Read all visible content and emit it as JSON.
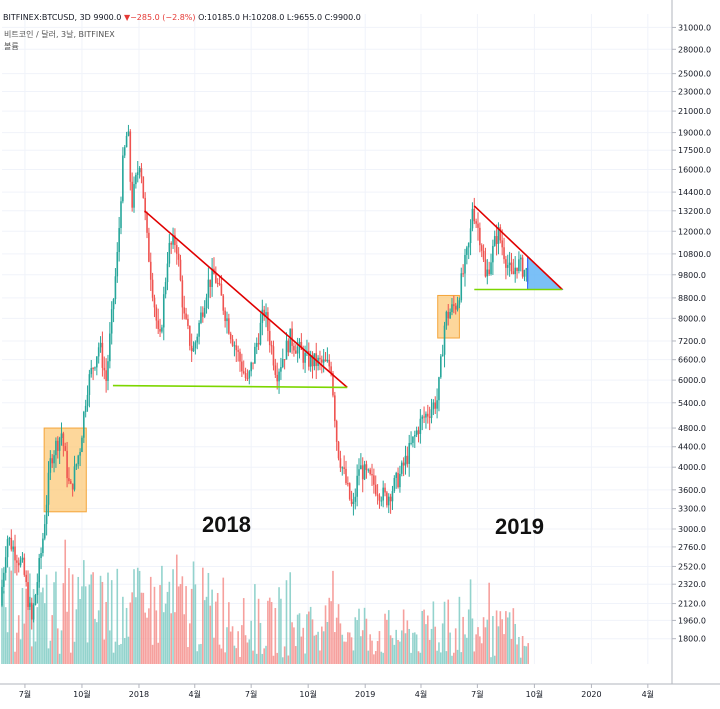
{
  "header": {
    "symbol": "BITFINEX:BTCUSD, 3D",
    "last": "9900.0",
    "change": "−285.0 (−2.8%)",
    "open": "O:10185.0",
    "high": "H:10208.0",
    "low": "L:9655.0",
    "close": "C:9900.0",
    "change_icon": "triangle-down-icon"
  },
  "legend": {
    "line1": "비트코인 / 달러, 3날, BITFINEX",
    "line2": "볼륨"
  },
  "annotations": {
    "year_2018": "2018",
    "year_2019": "2019"
  },
  "colors": {
    "up": "#26a69a",
    "down": "#ef5350",
    "volume_up": "#80cbc4",
    "volume_down": "#f48f8c",
    "resistance": "#e00000",
    "support": "#7cd600",
    "box_fill": "#fcc97a",
    "triangle_fill": "#64b5f6"
  },
  "chart_data": {
    "type": "candlestick",
    "y_scale": "log",
    "ylim": [
      1600,
      31500
    ],
    "y_ticks": [
      {
        "value": 31000,
        "label": "31000.0"
      },
      {
        "value": 28000,
        "label": "28000.0"
      },
      {
        "value": 25000,
        "label": "25000.0"
      },
      {
        "value": 23000,
        "label": "23000.0"
      },
      {
        "value": 21000,
        "label": "21000.0"
      },
      {
        "value": 19000,
        "label": "19000.0"
      },
      {
        "value": 17500,
        "label": "17500.0"
      },
      {
        "value": 16000,
        "label": "16000.0"
      },
      {
        "value": 14400,
        "label": "14400.0"
      },
      {
        "value": 13200,
        "label": "13200.0"
      },
      {
        "value": 12000,
        "label": "12000.0"
      },
      {
        "value": 10800,
        "label": "10800.0"
      },
      {
        "value": 9800,
        "label": "9800.0"
      },
      {
        "value": 8800,
        "label": "8800.0"
      },
      {
        "value": 8000,
        "label": "8000.0"
      },
      {
        "value": 7200,
        "label": "7200.0"
      },
      {
        "value": 6600,
        "label": "6600.0"
      },
      {
        "value": 6000,
        "label": "6000.0"
      },
      {
        "value": 5400,
        "label": "5400.0"
      },
      {
        "value": 4800,
        "label": "4800.0"
      },
      {
        "value": 4400,
        "label": "4400.0"
      },
      {
        "value": 4000,
        "label": "4000.0"
      },
      {
        "value": 3600,
        "label": "3600.0"
      },
      {
        "value": 3300,
        "label": "3300.0"
      },
      {
        "value": 3000,
        "label": "3000.0"
      },
      {
        "value": 2760,
        "label": "2760.0"
      },
      {
        "value": 2520,
        "label": "2520.0"
      },
      {
        "value": 2320,
        "label": "2320.0"
      },
      {
        "value": 2120,
        "label": "2120.0"
      },
      {
        "value": 1960,
        "label": "1960.0"
      },
      {
        "value": 1800,
        "label": "1800.0"
      }
    ],
    "xlim": [
      "2017-05-25",
      "2020-05-10"
    ],
    "x_ticks": [
      {
        "date": "2017-07-01",
        "label": "7월"
      },
      {
        "date": "2017-10-01",
        "label": "10월"
      },
      {
        "date": "2018-01-01",
        "label": "2018"
      },
      {
        "date": "2018-04-01",
        "label": "4월"
      },
      {
        "date": "2018-07-01",
        "label": "7월"
      },
      {
        "date": "2018-10-01",
        "label": "10월"
      },
      {
        "date": "2019-01-01",
        "label": "2019"
      },
      {
        "date": "2019-04-01",
        "label": "4월"
      },
      {
        "date": "2019-07-01",
        "label": "7월"
      },
      {
        "date": "2019-10-01",
        "label": "10월"
      },
      {
        "date": "2020-01-01",
        "label": "2020"
      },
      {
        "date": "2020-04-01",
        "label": "4월"
      }
    ],
    "price_path": [
      [
        "2017-05-25",
        2100
      ],
      [
        "2017-06-05",
        2900
      ],
      [
        "2017-06-15",
        2750
      ],
      [
        "2017-07-01",
        2500
      ],
      [
        "2017-07-15",
        1950
      ],
      [
        "2017-08-01",
        2800
      ],
      [
        "2017-08-15",
        4200
      ],
      [
        "2017-09-01",
        4700
      ],
      [
        "2017-09-15",
        3550
      ],
      [
        "2017-10-01",
        4400
      ],
      [
        "2017-10-12",
        5800
      ],
      [
        "2017-11-01",
        7100
      ],
      [
        "2017-11-12",
        6000
      ],
      [
        "2017-12-01",
        11000
      ],
      [
        "2017-12-08",
        16000
      ],
      [
        "2017-12-17",
        19500
      ],
      [
        "2017-12-23",
        13500
      ],
      [
        "2018-01-06",
        17000
      ],
      [
        "2018-01-17",
        11500
      ],
      [
        "2018-02-06",
        7000
      ],
      [
        "2018-02-20",
        11000
      ],
      [
        "2018-03-05",
        11500
      ],
      [
        "2018-03-18",
        8000
      ],
      [
        "2018-04-01",
        6800
      ],
      [
        "2018-04-25",
        9400
      ],
      [
        "2018-05-06",
        9800
      ],
      [
        "2018-06-01",
        7500
      ],
      [
        "2018-06-28",
        5900
      ],
      [
        "2018-07-25",
        8300
      ],
      [
        "2018-08-14",
        6200
      ],
      [
        "2018-09-05",
        7300
      ],
      [
        "2018-10-01",
        6600
      ],
      [
        "2018-11-10",
        6400
      ],
      [
        "2018-11-20",
        4400
      ],
      [
        "2018-12-15",
        3250
      ],
      [
        "2018-12-25",
        4000
      ],
      [
        "2019-01-10",
        3800
      ],
      [
        "2019-02-07",
        3450
      ],
      [
        "2019-03-01",
        3850
      ],
      [
        "2019-04-02",
        4900
      ],
      [
        "2019-05-01",
        5500
      ],
      [
        "2019-05-13",
        8000
      ],
      [
        "2019-06-01",
        8600
      ],
      [
        "2019-06-22",
        11500
      ],
      [
        "2019-06-26",
        13500
      ],
      [
        "2019-07-10",
        11500
      ],
      [
        "2019-07-17",
        9600
      ],
      [
        "2019-08-06",
        12000
      ],
      [
        "2019-08-29",
        9600
      ],
      [
        "2019-09-05",
        10400
      ],
      [
        "2019-09-22",
        9900
      ]
    ],
    "annotations": [
      {
        "kind": "box",
        "from": "2017-08-01",
        "to": "2017-10-08",
        "low": 3250,
        "high": 4800
      },
      {
        "kind": "box",
        "from": "2019-04-28",
        "to": "2019-06-02",
        "low": 7300,
        "high": 8900
      },
      {
        "kind": "line",
        "name": "resistance-2018",
        "from": [
          "2018-01-10",
          13200
        ],
        "to": [
          "2018-12-03",
          5800
        ]
      },
      {
        "kind": "line",
        "name": "support-2018",
        "from": [
          "2017-11-20",
          5850
        ],
        "to": [
          "2018-12-03",
          5800
        ]
      },
      {
        "kind": "line",
        "name": "resistance-2019",
        "from": [
          "2019-06-26",
          13500
        ],
        "to": [
          "2019-11-15",
          9150
        ]
      },
      {
        "kind": "line",
        "name": "support-2019",
        "from": [
          "2019-06-26",
          9150
        ],
        "to": [
          "2019-11-15",
          9150
        ]
      },
      {
        "kind": "triangle",
        "from": "2019-09-20",
        "to": "2019-11-15",
        "low": 9150
      }
    ]
  }
}
